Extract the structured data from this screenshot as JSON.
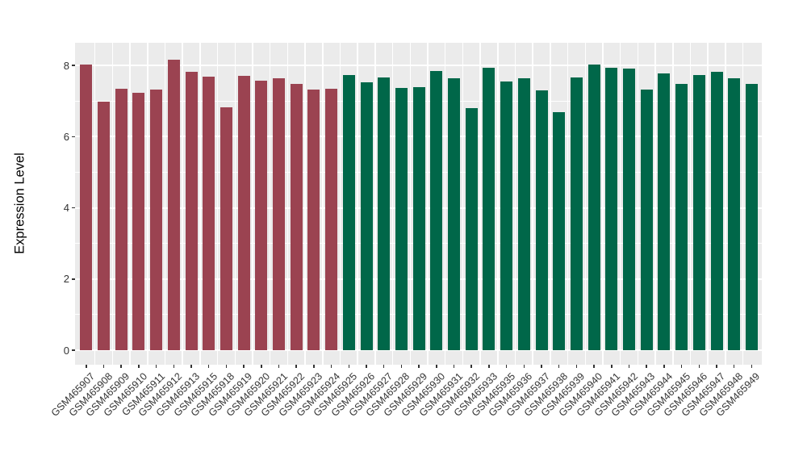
{
  "chart_data": {
    "type": "bar",
    "title": "",
    "xlabel": "",
    "ylabel": "Expression Level",
    "ylim": [
      0,
      8.6
    ],
    "yticks": [
      0,
      2,
      4,
      6,
      8
    ],
    "yminor": [
      1,
      3,
      5,
      7
    ],
    "grid": true,
    "legend_position": "none",
    "panel_background": "#EBEBEB",
    "gridline_color": "#FFFFFF",
    "axis_text_color": "#333333",
    "categories": [
      "GSM465907",
      "GSM465908",
      "GSM465909",
      "GSM465910",
      "GSM465911",
      "GSM465912",
      "GSM465913",
      "GSM465915",
      "GSM465918",
      "GSM465919",
      "GSM465920",
      "GSM465921",
      "GSM465922",
      "GSM465923",
      "GSM465924",
      "GSM465925",
      "GSM465926",
      "GSM465927",
      "GSM465928",
      "GSM465929",
      "GSM465930",
      "GSM465931",
      "GSM465932",
      "GSM465933",
      "GSM465935",
      "GSM465936",
      "GSM465937",
      "GSM465938",
      "GSM465939",
      "GSM465940",
      "GSM465941",
      "GSM465942",
      "GSM465943",
      "GSM465944",
      "GSM465945",
      "GSM465946",
      "GSM465947",
      "GSM465948",
      "GSM465949"
    ],
    "values": [
      8.03,
      6.98,
      7.35,
      7.23,
      7.31,
      8.15,
      7.82,
      7.69,
      6.83,
      7.7,
      7.56,
      7.64,
      7.49,
      7.31,
      7.35,
      7.73,
      7.52,
      7.67,
      7.36,
      7.38,
      7.85,
      7.63,
      6.8,
      7.94,
      7.54,
      7.63,
      7.29,
      6.69,
      7.65,
      8.03,
      7.94,
      7.9,
      7.33,
      7.78,
      7.48,
      7.73,
      7.83,
      7.63,
      7.48
    ],
    "bar_groups": [
      "maroon",
      "maroon",
      "maroon",
      "maroon",
      "maroon",
      "maroon",
      "maroon",
      "maroon",
      "maroon",
      "maroon",
      "maroon",
      "maroon",
      "maroon",
      "maroon",
      "maroon",
      "green",
      "green",
      "green",
      "green",
      "green",
      "green",
      "green",
      "green",
      "green",
      "green",
      "green",
      "green",
      "green",
      "green",
      "green",
      "green",
      "green",
      "green",
      "green",
      "green",
      "green",
      "green",
      "green",
      "green"
    ],
    "group_colors": {
      "maroon": "#9B4351",
      "green": "#006749"
    }
  }
}
